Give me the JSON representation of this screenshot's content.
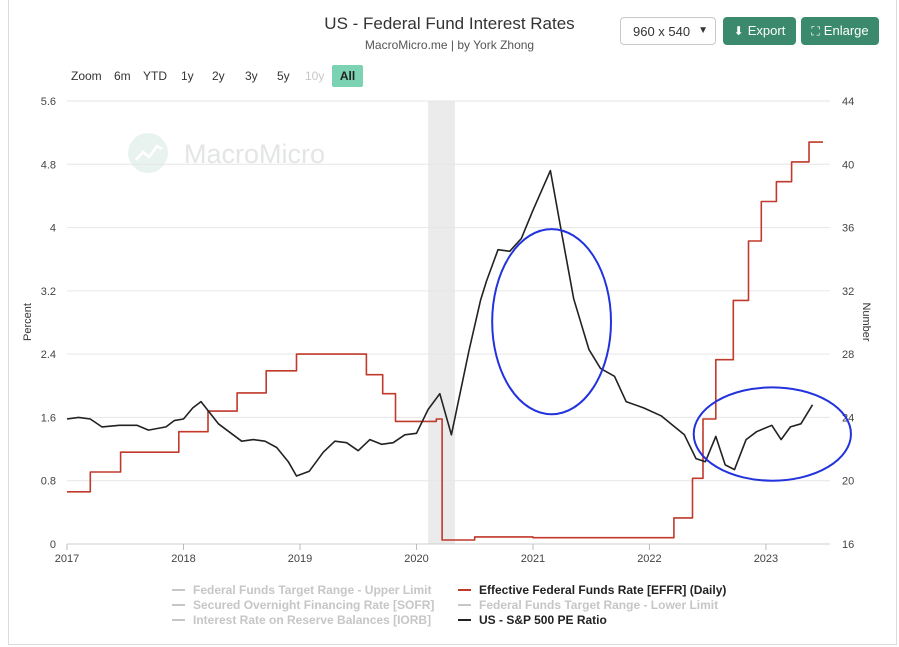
{
  "header": {
    "title": "US - Federal Fund Interest Rates",
    "subtitle": "MacroMicro.me | by York Zhong",
    "size_value": "960 x 540",
    "export_label": "Export",
    "enlarge_label": "Enlarge"
  },
  "zoom": {
    "label": "Zoom",
    "options": [
      "6m",
      "YTD",
      "1y",
      "2y",
      "3y",
      "5y",
      "10y"
    ],
    "active": "All"
  },
  "watermark": "MacroMicro",
  "colors": {
    "effr": "#c0392b",
    "pe": "#222222",
    "recession": "#ebebeb",
    "annotation": "#2233dd",
    "accent": "#3b8a6e",
    "zoom_active": "#7bd3b3",
    "legend_inactive": "#c6c6c6"
  },
  "chart_data": {
    "type": "line",
    "ylabel": "Percent",
    "y2label": "Number",
    "ylim": [
      0,
      5.6
    ],
    "y2lim": [
      16,
      44
    ],
    "xlim": [
      2017,
      2023.55
    ],
    "x_ticks": [
      "2017",
      "2018",
      "2019",
      "2020",
      "2021",
      "2022",
      "2023"
    ],
    "y_ticks": [
      "0",
      "0.8",
      "1.6",
      "2.4",
      "3.2",
      "4",
      "4.8",
      "5.6"
    ],
    "y2_ticks": [
      "16",
      "20",
      "24",
      "28",
      "32",
      "36",
      "40",
      "44"
    ],
    "recession_band": [
      2020.1,
      2020.33
    ],
    "annotation_ellipses": [
      {
        "x_range": [
          2020.65,
          2021.67
        ],
        "y2_range": [
          24.2,
          35.9
        ]
      },
      {
        "x_range": [
          2022.38,
          2023.73
        ],
        "y2_range": [
          20,
          25.9
        ]
      }
    ],
    "legend": [
      {
        "name": "Federal Funds Target Range - Upper Limit",
        "active": false
      },
      {
        "name": "Secured Overnight Financing Rate [SOFR]",
        "active": false
      },
      {
        "name": "Interest Rate on Reserve Balances [IORB]",
        "active": false
      },
      {
        "name": "Effective Federal Funds Rate [EFFR] (Daily)",
        "active": true
      },
      {
        "name": "Federal Funds Target Range - Lower Limit",
        "active": false
      },
      {
        "name": "US - S&P 500 PE Ratio",
        "active": true
      }
    ],
    "series": [
      {
        "name": "Effective Federal Funds Rate [EFFR] (Daily)",
        "axis": "left",
        "step": true,
        "x": [
          2017.0,
          2017.2,
          2017.46,
          2017.96,
          2018.21,
          2018.46,
          2018.71,
          2018.97,
          2019.57,
          2019.71,
          2019.82,
          2020.17,
          2020.22,
          2020.5,
          2021.0,
          2021.5,
          2022.0,
          2022.21,
          2022.37,
          2022.46,
          2022.57,
          2022.72,
          2022.85,
          2022.96,
          2023.09,
          2023.22,
          2023.37,
          2023.49
        ],
        "y": [
          0.66,
          0.91,
          1.16,
          1.42,
          1.68,
          1.91,
          2.19,
          2.4,
          2.14,
          1.9,
          1.55,
          1.58,
          0.05,
          0.09,
          0.08,
          0.08,
          0.08,
          0.33,
          0.83,
          1.58,
          2.33,
          3.08,
          3.83,
          4.33,
          4.58,
          4.83,
          5.08,
          5.08
        ]
      },
      {
        "name": "US - S&P 500 PE Ratio",
        "axis": "right",
        "x": [
          2017.0,
          2017.1,
          2017.2,
          2017.3,
          2017.45,
          2017.6,
          2017.7,
          2017.85,
          2017.92,
          2018.0,
          2018.08,
          2018.15,
          2018.3,
          2018.5,
          2018.6,
          2018.7,
          2018.8,
          2018.9,
          2018.97,
          2019.08,
          2019.2,
          2019.3,
          2019.4,
          2019.5,
          2019.6,
          2019.7,
          2019.8,
          2019.9,
          2020.0,
          2020.1,
          2020.2,
          2020.3,
          2020.45,
          2020.55,
          2020.6,
          2020.7,
          2020.8,
          2020.9,
          2021.0,
          2021.15,
          2021.25,
          2021.35,
          2021.48,
          2021.58,
          2021.7,
          2021.8,
          2021.95,
          2022.1,
          2022.2,
          2022.3,
          2022.4,
          2022.48,
          2022.57,
          2022.65,
          2022.73,
          2022.83,
          2022.92,
          2023.05,
          2023.13,
          2023.21,
          2023.3,
          2023.4
        ],
        "y": [
          23.9,
          24.0,
          23.9,
          23.4,
          23.5,
          23.5,
          23.2,
          23.4,
          23.8,
          23.9,
          24.6,
          25.0,
          23.6,
          22.5,
          22.6,
          22.5,
          22.1,
          21.2,
          20.3,
          20.6,
          21.8,
          22.5,
          22.4,
          21.9,
          22.6,
          22.3,
          22.4,
          22.9,
          23.0,
          24.5,
          25.5,
          22.9,
          28.2,
          31.4,
          32.6,
          34.6,
          34.5,
          35.3,
          37.1,
          39.6,
          35.5,
          31.5,
          28.3,
          27.1,
          26.6,
          25.0,
          24.6,
          24.1,
          23.5,
          22.9,
          21.4,
          21.2,
          22.8,
          21.0,
          20.7,
          22.6,
          23.1,
          23.5,
          22.6,
          23.4,
          23.6,
          24.8
        ]
      }
    ]
  }
}
